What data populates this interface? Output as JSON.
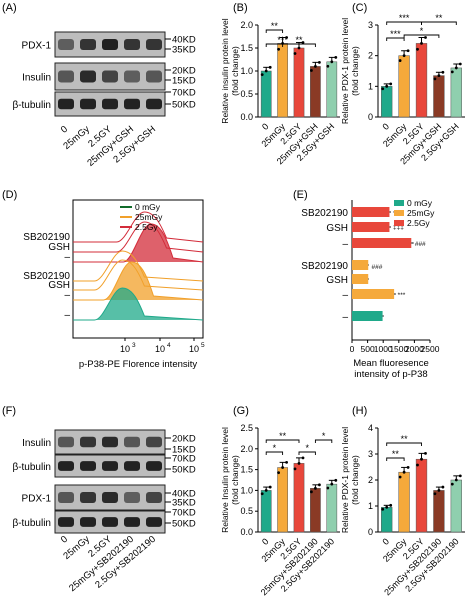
{
  "colors": {
    "c0": "#1fa98a",
    "c1": "#f5a93b",
    "c2": "#e8473b",
    "c3": "#8a3a25",
    "c4": "#8fcfae",
    "red": "#d32c3a",
    "orange": "#f1a02a",
    "green": "#116b2a"
  },
  "panels": {
    "A": {
      "label": "(A)",
      "rows": [
        "PDX-1",
        "Insulin",
        "β-tubulin"
      ],
      "markers": [
        "40KD",
        "35KD",
        "20KD",
        "15KD",
        "70KD",
        "50KD"
      ],
      "lanes": [
        "0",
        "25mGy",
        "2.5GY",
        "25mGy+GSH",
        "2.5Gy+GSH"
      ]
    },
    "F": {
      "label": "(F)",
      "rows": [
        "Insulin",
        "β-tubulin",
        "PDX-1",
        "β-tubulin"
      ],
      "markers": [
        "20KD",
        "15KD",
        "70KD",
        "50KD",
        "40KD",
        "35KD",
        "70KD",
        "50KD"
      ],
      "lanes": [
        "0",
        "25mGy",
        "2.5GY",
        "25mGy+SB202190",
        "2.5Gy+SB202190"
      ]
    },
    "D": {
      "label": "(D)",
      "legend": [
        "0 mGy",
        "25mGy",
        "2.5Gy"
      ],
      "rows": [
        "SB202190",
        "GSH",
        "–",
        "SB202190",
        "GSH",
        "–",
        "–"
      ],
      "xticks": [
        "10",
        "3",
        "10",
        "4",
        "10",
        "5"
      ],
      "xlabel": "p-P38-PE Florence intensity"
    }
  },
  "chart_data": [
    {
      "panel": "(B)",
      "type": "bar",
      "ylabel": "Relative insulin protein level\n(fold change)",
      "ylim": [
        0,
        2.0
      ],
      "yticks": [
        "0.0",
        "0.5",
        "1.0",
        "1.5",
        "2.0"
      ],
      "categories": [
        "0",
        "25mGy",
        "2.5GY",
        "25mGy+GSH",
        "2.5Gy+GSH"
      ],
      "values": [
        1.0,
        1.6,
        1.5,
        1.1,
        1.2
      ],
      "sig": [
        [
          "***",
          "0",
          "2.5GY"
        ],
        [
          "**",
          "0",
          "25mGy"
        ],
        [
          "**",
          "25mGy",
          "25mGy+GSH"
        ]
      ]
    },
    {
      "panel": "(C)",
      "type": "bar",
      "ylabel": "Relative PDX-1 protein level\n(fold change)",
      "ylim": [
        0,
        3
      ],
      "yticks": [
        "0",
        "1",
        "2",
        "3"
      ],
      "categories": [
        "0",
        "25mGy",
        "2.5GY",
        "25mGy+GSH",
        "2.5Gy+GSH"
      ],
      "values": [
        1.0,
        2.0,
        2.4,
        1.35,
        1.6
      ],
      "sig": [
        [
          "***",
          "0",
          "25mGy"
        ],
        [
          "***",
          "0",
          "2.5GY"
        ],
        [
          "*",
          "25mGy",
          "25mGy+GSH"
        ],
        [
          "**",
          "2.5GY",
          "2.5Gy+GSH"
        ]
      ]
    },
    {
      "panel": "(E)",
      "type": "bar",
      "orientation": "horizontal",
      "xlabel": "Mean fluoresence\nintensity of p-P38",
      "xlim": [
        0,
        2500
      ],
      "xticks": [
        "0",
        "500",
        "1000",
        "1500",
        "2000",
        "2500"
      ],
      "legend": [
        "0 mGy",
        "25mGy",
        "2.5Gy"
      ],
      "categories": [
        "SB202190",
        "GSH",
        "–",
        "SB202190",
        "GSH",
        "–",
        "–"
      ],
      "values": [
        1200,
        1200,
        1900,
        520,
        520,
        1350,
        980
      ],
      "annotations": [
        "***",
        "‡‡‡",
        "###",
        "###",
        "***"
      ]
    },
    {
      "panel": "(G)",
      "type": "bar",
      "ylabel": "Relative Insulin protein level\n(fold change)",
      "ylim": [
        0,
        2.5
      ],
      "yticks": [
        "0.0",
        "0.5",
        "1.0",
        "1.5",
        "2.0",
        "2.5"
      ],
      "categories": [
        "0",
        "25mGy",
        "2.5GY",
        "25mGy+SB202190",
        "2.5Gy+SB202190"
      ],
      "values": [
        1.0,
        1.55,
        1.65,
        1.05,
        1.15
      ],
      "sig": [
        [
          "**",
          "0",
          "2.5GY"
        ],
        [
          "*",
          "25mGy+SB202190",
          "2.5Gy+SB202190"
        ],
        [
          "*",
          "0",
          "25mGy"
        ],
        [
          "*",
          "2.5GY",
          "25mGy+SB202190"
        ]
      ]
    },
    {
      "panel": "(H)",
      "type": "bar",
      "ylabel": "Relative PDX-1 protein level\n(fold change)",
      "ylim": [
        0,
        4
      ],
      "yticks": [
        "0",
        "1",
        "2",
        "3",
        "4"
      ],
      "categories": [
        "0",
        "25mGy",
        "2.5GY",
        "25mGy+SB202190",
        "2.5Gy+SB202190"
      ],
      "values": [
        0.95,
        2.3,
        2.8,
        1.6,
        2.0
      ],
      "sig": [
        [
          "**",
          "0",
          "2.5GY"
        ],
        [
          "**",
          "0",
          "25mGy"
        ]
      ]
    }
  ]
}
